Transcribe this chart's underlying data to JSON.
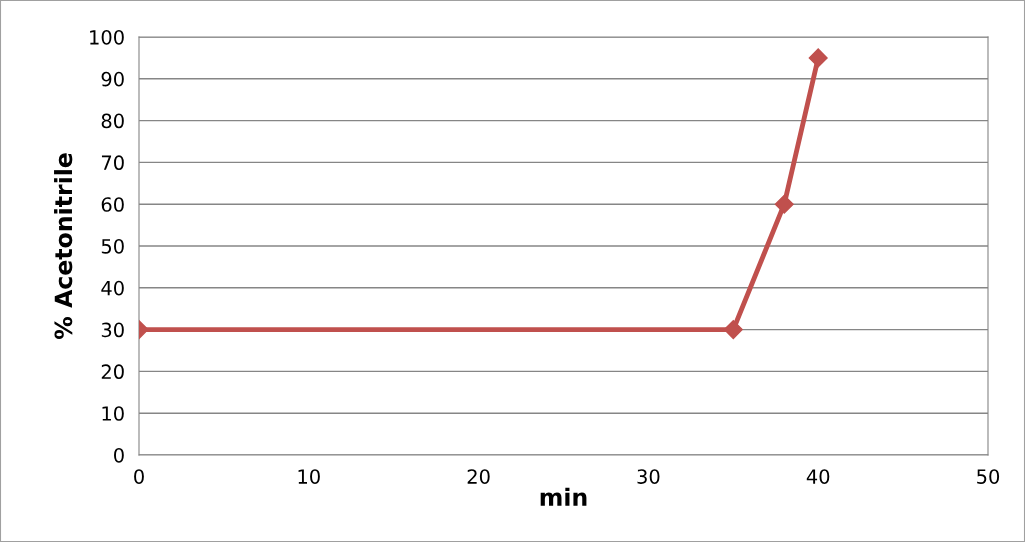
{
  "chart_data": {
    "type": "line",
    "xlabel": "min",
    "ylabel": "% Acetonitrile",
    "x": [
      0,
      35,
      38,
      40
    ],
    "series": [
      {
        "color": "#c0504d",
        "values": [
          30,
          30,
          60,
          95
        ]
      }
    ],
    "xlim": [
      0,
      50
    ],
    "xticks": [
      0,
      10,
      20,
      30,
      40,
      50
    ],
    "ylim": [
      0,
      100
    ],
    "yticks": [
      0,
      10,
      20,
      30,
      40,
      50,
      60,
      70,
      80,
      90,
      100
    ],
    "grid": "y",
    "marker": "diamond",
    "line_style": "solid"
  }
}
